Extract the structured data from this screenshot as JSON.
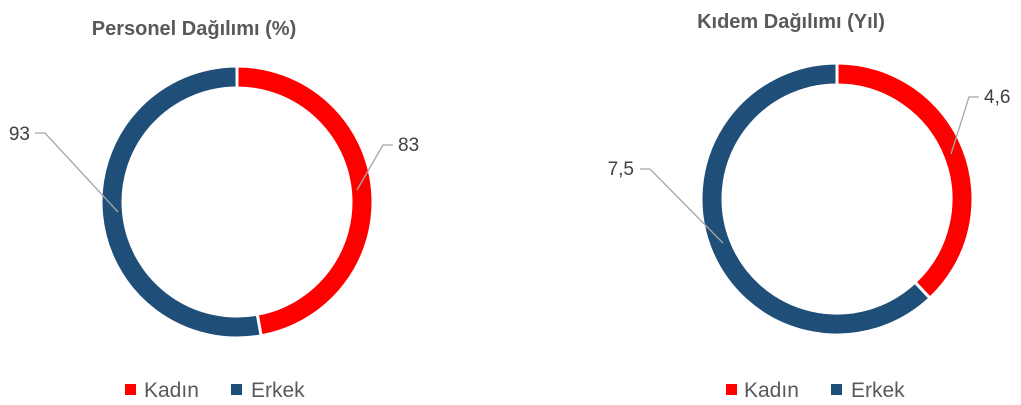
{
  "chart_data": [
    {
      "type": "pie",
      "subtype": "doughnut",
      "title": "Personel Dağılımı  (%)",
      "categories": [
        "Kadın",
        "Erkek"
      ],
      "values": [
        83,
        93
      ],
      "labels": [
        "83",
        "93"
      ],
      "colors": [
        "#ff0000",
        "#1f4e79"
      ],
      "legend": {
        "position": "bottom",
        "items": [
          "Kadın",
          "Erkek"
        ]
      }
    },
    {
      "type": "pie",
      "subtype": "doughnut",
      "title": "Kıdem Dağılımı (Yıl)",
      "categories": [
        "Kadın",
        "Erkek"
      ],
      "values": [
        4.6,
        7.5
      ],
      "labels": [
        "4,6",
        "7,5"
      ],
      "colors": [
        "#ff0000",
        "#1f4e79"
      ],
      "legend": {
        "position": "bottom",
        "items": [
          "Kadın",
          "Erkek"
        ]
      }
    }
  ]
}
